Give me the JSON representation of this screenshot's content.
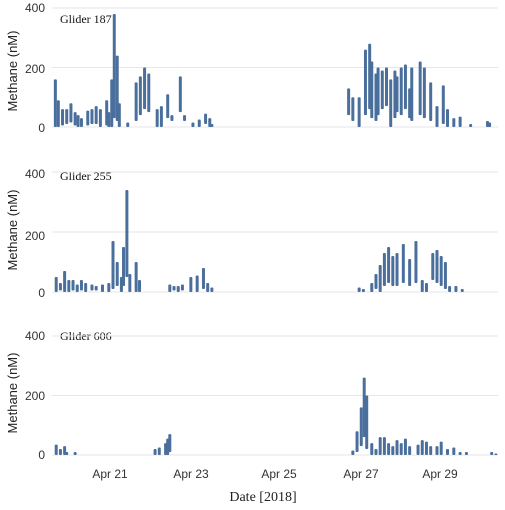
{
  "figure": {
    "xlabel": "Date [2018]",
    "x_ticks": [
      "Apr 21",
      "Apr 23",
      "Apr 25",
      "Apr 27",
      "Apr 29"
    ],
    "series_color": "#4a6f9c",
    "grid_color": "#e6e6e6"
  },
  "chart_data": [
    {
      "type": "bar",
      "title": "Glider 187",
      "ylabel": "Methane (nM)",
      "ylim": [
        0,
        400
      ],
      "y_ticks": [
        0,
        200,
        400
      ],
      "x_unit": "day of April 2018",
      "xlim": [
        20.0,
        30.6
      ],
      "values": [
        [
          20.08,
          0,
          160
        ],
        [
          20.15,
          0,
          90
        ],
        [
          20.25,
          5,
          60
        ],
        [
          20.35,
          10,
          60
        ],
        [
          20.45,
          15,
          80
        ],
        [
          20.55,
          5,
          50
        ],
        [
          20.62,
          0,
          40
        ],
        [
          20.7,
          0,
          30
        ],
        [
          20.85,
          5,
          55
        ],
        [
          20.95,
          10,
          60
        ],
        [
          21.05,
          10,
          70
        ],
        [
          21.15,
          0,
          60
        ],
        [
          21.3,
          5,
          90
        ],
        [
          21.35,
          0,
          50
        ],
        [
          21.42,
          0,
          160
        ],
        [
          21.48,
          30,
          380
        ],
        [
          21.55,
          20,
          240
        ],
        [
          21.6,
          0,
          80
        ],
        [
          21.8,
          0,
          15
        ],
        [
          22.0,
          20,
          150
        ],
        [
          22.1,
          40,
          170
        ],
        [
          22.2,
          60,
          200
        ],
        [
          22.3,
          50,
          180
        ],
        [
          22.5,
          0,
          60
        ],
        [
          22.6,
          0,
          70
        ],
        [
          22.75,
          30,
          110
        ],
        [
          22.85,
          20,
          40
        ],
        [
          23.05,
          50,
          170
        ],
        [
          23.15,
          20,
          40
        ],
        [
          23.35,
          0,
          15
        ],
        [
          23.5,
          0,
          25
        ],
        [
          23.65,
          10,
          45
        ],
        [
          23.75,
          0,
          30
        ],
        [
          23.8,
          0,
          10
        ],
        [
          27.05,
          40,
          130
        ],
        [
          27.15,
          20,
          100
        ],
        [
          27.3,
          0,
          100
        ],
        [
          27.45,
          40,
          260
        ],
        [
          27.55,
          60,
          280
        ],
        [
          27.6,
          30,
          220
        ],
        [
          27.7,
          20,
          180
        ],
        [
          27.75,
          40,
          200
        ],
        [
          27.85,
          60,
          190
        ],
        [
          27.95,
          70,
          200
        ],
        [
          28.05,
          0,
          160
        ],
        [
          28.15,
          30,
          190
        ],
        [
          28.2,
          50,
          170
        ],
        [
          28.3,
          40,
          200
        ],
        [
          28.4,
          60,
          210
        ],
        [
          28.5,
          30,
          130
        ],
        [
          28.55,
          20,
          200
        ],
        [
          28.75,
          40,
          220
        ],
        [
          28.85,
          30,
          200
        ],
        [
          29.0,
          20,
          150
        ],
        [
          29.15,
          0,
          70
        ],
        [
          29.3,
          10,
          140
        ],
        [
          29.4,
          0,
          60
        ],
        [
          29.55,
          0,
          30
        ],
        [
          29.7,
          0,
          35
        ],
        [
          29.95,
          0,
          10
        ],
        [
          30.35,
          0,
          20
        ],
        [
          30.4,
          0,
          15
        ]
      ]
    },
    {
      "type": "bar",
      "title": "Glider 255",
      "ylabel": "Methane (nM)",
      "ylim": [
        0,
        400
      ],
      "y_ticks": [
        0,
        200,
        400
      ],
      "x_unit": "day of April 2018",
      "xlim": [
        20.0,
        30.6
      ],
      "values": [
        [
          20.1,
          0,
          50
        ],
        [
          20.2,
          5,
          30
        ],
        [
          20.3,
          0,
          70
        ],
        [
          20.4,
          0,
          40
        ],
        [
          20.5,
          5,
          40
        ],
        [
          20.6,
          0,
          25
        ],
        [
          20.7,
          5,
          40
        ],
        [
          20.8,
          0,
          30
        ],
        [
          20.95,
          5,
          25
        ],
        [
          21.05,
          5,
          20
        ],
        [
          21.2,
          0,
          25
        ],
        [
          21.35,
          0,
          30
        ],
        [
          21.45,
          10,
          170
        ],
        [
          21.55,
          20,
          100
        ],
        [
          21.65,
          0,
          50
        ],
        [
          21.7,
          20,
          150
        ],
        [
          21.78,
          50,
          340
        ],
        [
          21.85,
          0,
          60
        ],
        [
          22.0,
          0,
          100
        ],
        [
          22.08,
          0,
          40
        ],
        [
          22.8,
          0,
          25
        ],
        [
          22.9,
          5,
          20
        ],
        [
          23.0,
          0,
          20
        ],
        [
          23.1,
          5,
          25
        ],
        [
          23.3,
          0,
          50
        ],
        [
          23.45,
          0,
          55
        ],
        [
          23.6,
          10,
          80
        ],
        [
          23.7,
          0,
          30
        ],
        [
          23.8,
          0,
          15
        ],
        [
          27.3,
          0,
          15
        ],
        [
          27.4,
          0,
          10
        ],
        [
          27.6,
          0,
          30
        ],
        [
          27.7,
          10,
          60
        ],
        [
          27.8,
          0,
          90
        ],
        [
          27.9,
          20,
          130
        ],
        [
          28.0,
          30,
          150
        ],
        [
          28.1,
          20,
          120
        ],
        [
          28.2,
          20,
          130
        ],
        [
          28.35,
          30,
          160
        ],
        [
          28.5,
          20,
          110
        ],
        [
          28.65,
          30,
          170
        ],
        [
          28.8,
          0,
          40
        ],
        [
          28.9,
          0,
          30
        ],
        [
          29.05,
          40,
          130
        ],
        [
          29.15,
          30,
          140
        ],
        [
          29.25,
          20,
          120
        ],
        [
          29.35,
          10,
          100
        ],
        [
          29.45,
          0,
          20
        ],
        [
          29.6,
          0,
          20
        ],
        [
          29.75,
          0,
          10
        ]
      ]
    },
    {
      "type": "bar",
      "title": "Glider 606",
      "ylabel": "Methane (nM)",
      "ylim": [
        0,
        400
      ],
      "y_ticks": [
        0,
        200,
        400
      ],
      "x_unit": "day of April 2018",
      "xlim": [
        20.0,
        30.6
      ],
      "values": [
        [
          20.1,
          0,
          35
        ],
        [
          20.2,
          0,
          20
        ],
        [
          20.3,
          0,
          30
        ],
        [
          20.35,
          0,
          10
        ],
        [
          20.55,
          0,
          10
        ],
        [
          22.45,
          0,
          20
        ],
        [
          22.55,
          0,
          25
        ],
        [
          22.7,
          0,
          40
        ],
        [
          22.75,
          0,
          55
        ],
        [
          22.8,
          10,
          70
        ],
        [
          27.15,
          0,
          15
        ],
        [
          27.25,
          10,
          80
        ],
        [
          27.35,
          30,
          160
        ],
        [
          27.42,
          60,
          260
        ],
        [
          27.48,
          20,
          200
        ],
        [
          27.6,
          0,
          40
        ],
        [
          27.7,
          0,
          20
        ],
        [
          27.8,
          0,
          60
        ],
        [
          27.9,
          0,
          60
        ],
        [
          28.0,
          0,
          40
        ],
        [
          28.1,
          0,
          30
        ],
        [
          28.2,
          0,
          50
        ],
        [
          28.3,
          0,
          40
        ],
        [
          28.4,
          0,
          55
        ],
        [
          28.5,
          0,
          30
        ],
        [
          28.7,
          0,
          35
        ],
        [
          28.8,
          0,
          50
        ],
        [
          28.9,
          0,
          45
        ],
        [
          29.0,
          0,
          30
        ],
        [
          29.15,
          0,
          30
        ],
        [
          29.25,
          0,
          45
        ],
        [
          29.4,
          0,
          20
        ],
        [
          29.55,
          0,
          25
        ],
        [
          29.7,
          0,
          10
        ],
        [
          29.85,
          0,
          10
        ],
        [
          30.45,
          0,
          10
        ],
        [
          30.55,
          0,
          5
        ]
      ]
    }
  ]
}
